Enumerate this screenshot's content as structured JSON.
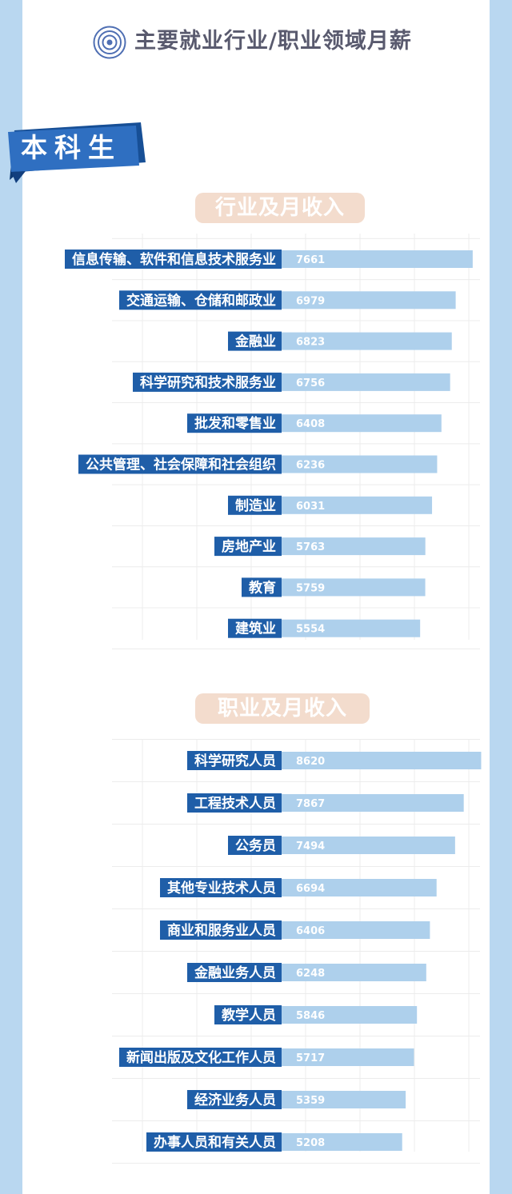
{
  "header": {
    "title": "主要就业行业/职业领域月薪",
    "icon": "target-icon"
  },
  "badge": {
    "text": "本科生"
  },
  "colors": {
    "side_band": "#b9d7f0",
    "label_bg": "#1f5ea8",
    "bar_fill": "#aed0ec",
    "pill_bg": "#f3dccd",
    "grid": "#ececec",
    "title_text": "#595a6e"
  },
  "chart_data": [
    {
      "type": "bar",
      "orientation": "horizontal",
      "title": "行业及月收入",
      "categories": [
        "信息传输、软件和信息技术服务业",
        "交通运输、仓储和邮政业",
        "金融业",
        "科学研究和技术服务业",
        "批发和零售业",
        "公共管理、社会保障和社会组织",
        "制造业",
        "房地产业",
        "教育",
        "建筑业"
      ],
      "values": [
        7661,
        6979,
        6823,
        6756,
        6408,
        6236,
        6031,
        5763,
        5759,
        5554
      ],
      "grid": true,
      "legend": "none"
    },
    {
      "type": "bar",
      "orientation": "horizontal",
      "title": "职业及月收入",
      "categories": [
        "科学研究人员",
        "工程技术人员",
        "公务员",
        "其他专业技术人员",
        "商业和服务业人员",
        "金融业务人员",
        "教学人员",
        "新闻出版及文化工作人员",
        "经济业务人员",
        "办事人员和有关人员"
      ],
      "values": [
        8620,
        7867,
        7494,
        6694,
        6406,
        6248,
        5846,
        5717,
        5359,
        5208
      ],
      "grid": true,
      "legend": "none"
    }
  ]
}
